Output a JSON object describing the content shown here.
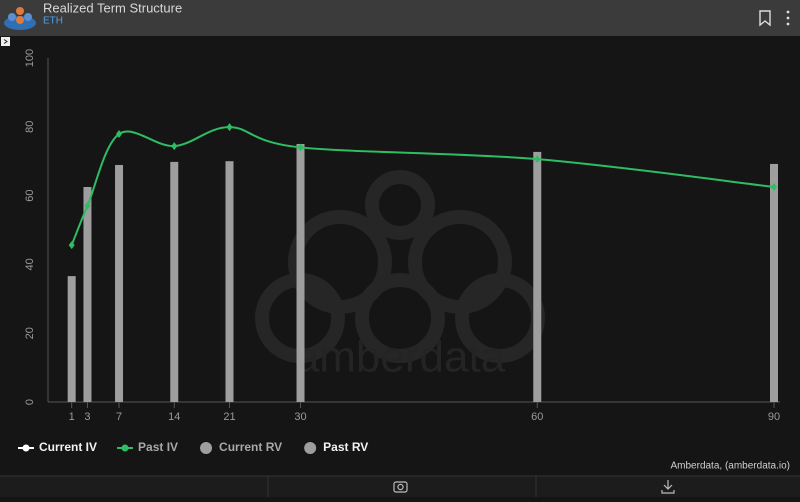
{
  "chart_data": {
    "type": "bar-line",
    "title": "Realized Term Structure",
    "subtitle": "ETH",
    "watermark": "amberdata",
    "credits": "Amberdata, (amberdata.io)",
    "x": [
      1,
      3,
      7,
      14,
      21,
      30,
      60,
      90
    ],
    "xlim": [
      -2,
      90
    ],
    "xticks": [
      1,
      3,
      7,
      14,
      21,
      30,
      60,
      90
    ],
    "ylim": [
      0,
      100
    ],
    "yticks": [
      0,
      20,
      40,
      60,
      80,
      100
    ],
    "grid": false,
    "legend": "bottom-left",
    "series": [
      {
        "name": "Current IV",
        "type": "line",
        "color": "#ffffff",
        "values": [
          null,
          null,
          null,
          null,
          null,
          null,
          null,
          null
        ]
      },
      {
        "name": "Past IV",
        "type": "line",
        "color": "#2ebd63",
        "values": [
          45.6,
          57,
          77.9,
          74.4,
          79.9,
          74,
          70.6,
          62.5
        ]
      },
      {
        "name": "Current RV",
        "type": "bar",
        "color": "#9e9e9e",
        "values": [
          null,
          null,
          null,
          null,
          null,
          null,
          null,
          null
        ]
      },
      {
        "name": "Past RV",
        "type": "bar",
        "color": "#9e9e9e",
        "values": [
          36.6,
          62.5,
          68.9,
          69.8,
          70,
          75,
          72.7,
          69.2
        ]
      }
    ]
  }
}
